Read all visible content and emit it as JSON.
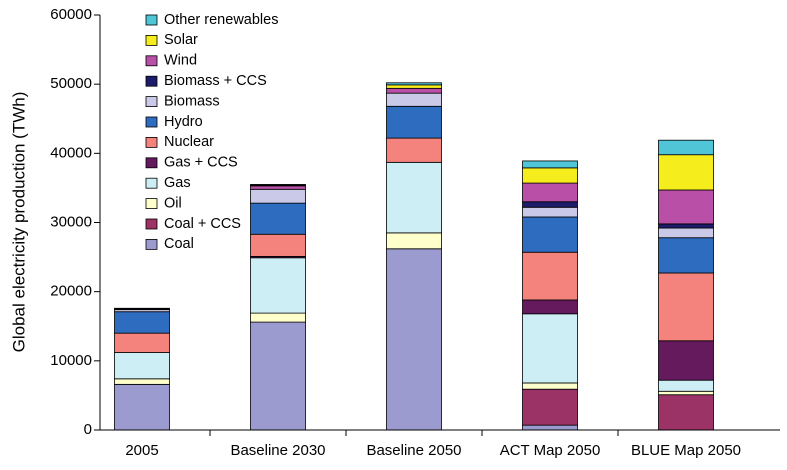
{
  "chart_data": {
    "type": "stacked_bar",
    "ylabel": "Global electricity production (TWh)",
    "categories": [
      "2005",
      "Baseline 2030",
      "Baseline 2050",
      "ACT Map 2050",
      "BLUE Map 2050"
    ],
    "ylim": [
      0,
      60000
    ],
    "yticks": [
      0,
      10000,
      20000,
      30000,
      40000,
      50000,
      60000
    ],
    "legend": "upper left",
    "series": [
      {
        "name": "Coal",
        "color": "#9b9bcf",
        "values": [
          6600,
          15600,
          26200,
          700,
          0
        ]
      },
      {
        "name": "Coal + CCS",
        "color": "#9c3366",
        "values": [
          0,
          0,
          0,
          5200,
          5100
        ]
      },
      {
        "name": "Oil",
        "color": "#ffffcc",
        "values": [
          800,
          1300,
          2300,
          900,
          500
        ]
      },
      {
        "name": "Gas",
        "color": "#cdeef5",
        "values": [
          3800,
          8000,
          10200,
          10000,
          1600
        ]
      },
      {
        "name": "Gas + CCS",
        "color": "#651a5e",
        "values": [
          0,
          200,
          0,
          2000,
          5700
        ]
      },
      {
        "name": "Nuclear",
        "color": "#f4827d",
        "values": [
          2800,
          3200,
          3500,
          6900,
          9800
        ]
      },
      {
        "name": "Hydro",
        "color": "#2e6cbf",
        "values": [
          3100,
          4500,
          4600,
          5100,
          5100
        ]
      },
      {
        "name": "Biomass",
        "color": "#cacae8",
        "values": [
          300,
          2000,
          1900,
          1400,
          1400
        ]
      },
      {
        "name": "Biomass + CCS",
        "color": "#1c1c6b",
        "values": [
          0,
          0,
          0,
          800,
          600
        ]
      },
      {
        "name": "Wind",
        "color": "#b94fa6",
        "values": [
          100,
          500,
          700,
          2700,
          4900
        ]
      },
      {
        "name": "Solar",
        "color": "#f6ee1c",
        "values": [
          0,
          100,
          500,
          2200,
          5100
        ]
      },
      {
        "name": "Other renewables",
        "color": "#4fc5d7",
        "values": [
          100,
          100,
          300,
          1000,
          2100
        ]
      }
    ]
  }
}
